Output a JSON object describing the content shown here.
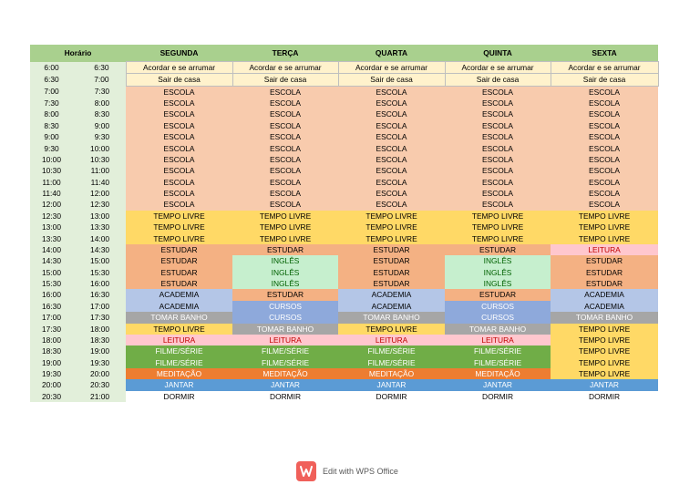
{
  "table": {
    "header": [
      "Horário",
      "SEGUNDA",
      "TERÇA",
      "QUARTA",
      "QUINTA",
      "SEXTA"
    ],
    "palette": {
      "Acordar e se arrumar": {
        "fill": "#fff2cc",
        "color": "#000000"
      },
      "Sair de casa": {
        "fill": "#fff2cc",
        "color": "#000000"
      },
      "ESCOLA": {
        "fill": "#f8cbad",
        "color": "#000000"
      },
      "TEMPO LIVRE": {
        "fill": "#ffd966",
        "color": "#000000"
      },
      "ESTUDAR": {
        "fill": "#f4b183",
        "color": "#000000"
      },
      "LEITURA": {
        "fill": "#ffc7ce",
        "color": "#c00000"
      },
      "INGLÊS": {
        "fill": "#c6efce",
        "color": "#006100"
      },
      "ACADEMIA": {
        "fill": "#b4c6e7",
        "color": "#000000"
      },
      "CURSOS": {
        "fill": "#8ea9db",
        "color": "#ffffff"
      },
      "TOMAR BANHO": {
        "fill": "#a6a6a6",
        "color": "#ffffff"
      },
      "FILME/SÉRIE": {
        "fill": "#70ad47",
        "color": "#ffffff"
      },
      "MEDITAÇÃO": {
        "fill": "#ed7d31",
        "color": "#ffffff"
      },
      "JANTAR": {
        "fill": "#5b9bd5",
        "color": "#ffffff"
      },
      "DORMIR": {
        "fill": "#ffffff",
        "color": "#000000"
      }
    },
    "rows": [
      {
        "start": "6:00",
        "end": "6:30",
        "cells": [
          "Acordar e se arrumar",
          "Acordar e se arrumar",
          "Acordar e se arrumar",
          "Acordar e se arrumar",
          "Acordar e se arrumar"
        ]
      },
      {
        "start": "6:30",
        "end": "7:00",
        "cells": [
          "Sair de casa",
          "Sair de casa",
          "Sair de casa",
          "Sair de casa",
          "Sair de casa"
        ]
      },
      {
        "start": "7:00",
        "end": "7:30",
        "cells": [
          "ESCOLA",
          "ESCOLA",
          "ESCOLA",
          "ESCOLA",
          "ESCOLA"
        ]
      },
      {
        "start": "7:30",
        "end": "8:00",
        "cells": [
          "ESCOLA",
          "ESCOLA",
          "ESCOLA",
          "ESCOLA",
          "ESCOLA"
        ]
      },
      {
        "start": "8:00",
        "end": "8:30",
        "cells": [
          "ESCOLA",
          "ESCOLA",
          "ESCOLA",
          "ESCOLA",
          "ESCOLA"
        ]
      },
      {
        "start": "8:30",
        "end": "9:00",
        "cells": [
          "ESCOLA",
          "ESCOLA",
          "ESCOLA",
          "ESCOLA",
          "ESCOLA"
        ]
      },
      {
        "start": "9:00",
        "end": "9:30",
        "cells": [
          "ESCOLA",
          "ESCOLA",
          "ESCOLA",
          "ESCOLA",
          "ESCOLA"
        ]
      },
      {
        "start": "9:30",
        "end": "10:00",
        "cells": [
          "ESCOLA",
          "ESCOLA",
          "ESCOLA",
          "ESCOLA",
          "ESCOLA"
        ]
      },
      {
        "start": "10:00",
        "end": "10:30",
        "cells": [
          "ESCOLA",
          "ESCOLA",
          "ESCOLA",
          "ESCOLA",
          "ESCOLA"
        ]
      },
      {
        "start": "10:30",
        "end": "11:00",
        "cells": [
          "ESCOLA",
          "ESCOLA",
          "ESCOLA",
          "ESCOLA",
          "ESCOLA"
        ]
      },
      {
        "start": "11:00",
        "end": "11:40",
        "cells": [
          "ESCOLA",
          "ESCOLA",
          "ESCOLA",
          "ESCOLA",
          "ESCOLA"
        ]
      },
      {
        "start": "11:40",
        "end": "12:00",
        "cells": [
          "ESCOLA",
          "ESCOLA",
          "ESCOLA",
          "ESCOLA",
          "ESCOLA"
        ]
      },
      {
        "start": "12:00",
        "end": "12:30",
        "cells": [
          "ESCOLA",
          "ESCOLA",
          "ESCOLA",
          "ESCOLA",
          "ESCOLA"
        ]
      },
      {
        "start": "12:30",
        "end": "13:00",
        "cells": [
          "TEMPO LIVRE",
          "TEMPO LIVRE",
          "TEMPO LIVRE",
          "TEMPO LIVRE",
          "TEMPO LIVRE"
        ]
      },
      {
        "start": "13:00",
        "end": "13:30",
        "cells": [
          "TEMPO LIVRE",
          "TEMPO LIVRE",
          "TEMPO LIVRE",
          "TEMPO LIVRE",
          "TEMPO LIVRE"
        ]
      },
      {
        "start": "13:30",
        "end": "14:00",
        "cells": [
          "TEMPO LIVRE",
          "TEMPO LIVRE",
          "TEMPO LIVRE",
          "TEMPO LIVRE",
          "TEMPO LIVRE"
        ]
      },
      {
        "start": "14:00",
        "end": "14:30",
        "cells": [
          "ESTUDAR",
          "ESTUDAR",
          "ESTUDAR",
          "ESTUDAR",
          "LEITURA"
        ]
      },
      {
        "start": "14:30",
        "end": "15:00",
        "cells": [
          "ESTUDAR",
          "INGLÊS",
          "ESTUDAR",
          "INGLÊS",
          "ESTUDAR"
        ]
      },
      {
        "start": "15:00",
        "end": "15:30",
        "cells": [
          "ESTUDAR",
          "INGLÊS",
          "ESTUDAR",
          "INGLÊS",
          "ESTUDAR"
        ]
      },
      {
        "start": "15:30",
        "end": "16:00",
        "cells": [
          "ESTUDAR",
          "INGLÊS",
          "ESTUDAR",
          "INGLÊS",
          "ESTUDAR"
        ]
      },
      {
        "start": "16:00",
        "end": "16:30",
        "cells": [
          "ACADEMIA",
          "ESTUDAR",
          "ACADEMIA",
          "ESTUDAR",
          "ACADEMIA"
        ]
      },
      {
        "start": "16:30",
        "end": "17:00",
        "cells": [
          "ACADEMIA",
          "CURSOS",
          "ACADEMIA",
          "CURSOS",
          "ACADEMIA"
        ]
      },
      {
        "start": "17:00",
        "end": "17:30",
        "cells": [
          "TOMAR BANHO",
          "CURSOS",
          "TOMAR BANHO",
          "CURSOS",
          "TOMAR BANHO"
        ]
      },
      {
        "start": "17:30",
        "end": "18:00",
        "cells": [
          "TEMPO LIVRE",
          "TOMAR BANHO",
          "TEMPO LIVRE",
          "TOMAR BANHO",
          "TEMPO LIVRE"
        ]
      },
      {
        "start": "18:00",
        "end": "18:30",
        "cells": [
          "LEITURA",
          "LEITURA",
          "LEITURA",
          "LEITURA",
          "TEMPO LIVRE"
        ]
      },
      {
        "start": "18:30",
        "end": "19:00",
        "cells": [
          "FILME/SÉRIE",
          "FILME/SÉRIE",
          "FILME/SÉRIE",
          "FILME/SÉRIE",
          "TEMPO LIVRE"
        ]
      },
      {
        "start": "19:00",
        "end": "19:30",
        "cells": [
          "FILME/SÉRIE",
          "FILME/SÉRIE",
          "FILME/SÉRIE",
          "FILME/SÉRIE",
          "TEMPO LIVRE"
        ]
      },
      {
        "start": "19:30",
        "end": "20:00",
        "cells": [
          "MEDITAÇÃO",
          "MEDITAÇÃO",
          "MEDITAÇÃO",
          "MEDITAÇÃO",
          "TEMPO LIVRE"
        ]
      },
      {
        "start": "20:00",
        "end": "20:30",
        "cells": [
          "JANTAR",
          "JANTAR",
          "JANTAR",
          "JANTAR",
          "JANTAR"
        ]
      },
      {
        "start": "20:30",
        "end": "21:00",
        "cells": [
          "DORMIR",
          "DORMIR",
          "DORMIR",
          "DORMIR",
          "DORMIR"
        ]
      }
    ]
  },
  "footer": {
    "text": "Edit with WPS Office"
  }
}
